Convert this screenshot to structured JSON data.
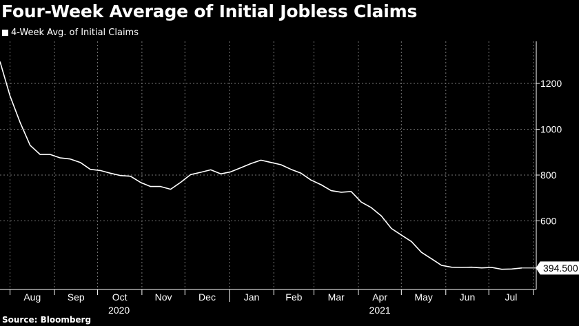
{
  "title": "Four-Week Average of Initial Jobless Claims",
  "legend": {
    "label": "4-Week Avg. of Initial Claims",
    "color": "#ffffff"
  },
  "source": "Source: Bloomberg",
  "chart_data": {
    "type": "line",
    "title": "Four-Week Average of Initial Jobless Claims",
    "xlabel": "",
    "ylabel": "",
    "ylim": [
      360,
      1340
    ],
    "y_ticks": [
      600,
      800,
      1000,
      1200
    ],
    "x_month_labels": [
      "Aug",
      "Sep",
      "Oct",
      "Nov",
      "Dec",
      "Jan",
      "Feb",
      "Mar",
      "Apr",
      "May",
      "Jun",
      "Jul"
    ],
    "x_year_labels": [
      "2020",
      "2021"
    ],
    "grid": true,
    "legend_position": "top-left",
    "last_value_label": "394.500",
    "series": [
      {
        "name": "4-Week Avg. of Initial Claims",
        "color": "#ffffff",
        "x": [
          "2020-07-25",
          "2020-08-01",
          "2020-08-08",
          "2020-08-15",
          "2020-08-22",
          "2020-08-29",
          "2020-09-05",
          "2020-09-12",
          "2020-09-19",
          "2020-09-26",
          "2020-10-03",
          "2020-10-10",
          "2020-10-17",
          "2020-10-24",
          "2020-10-31",
          "2020-11-07",
          "2020-11-14",
          "2020-11-21",
          "2020-11-28",
          "2020-12-05",
          "2020-12-12",
          "2020-12-19",
          "2020-12-26",
          "2021-01-02",
          "2021-01-09",
          "2021-01-16",
          "2021-01-23",
          "2021-01-30",
          "2021-02-06",
          "2021-02-13",
          "2021-02-20",
          "2021-02-27",
          "2021-03-06",
          "2021-03-13",
          "2021-03-20",
          "2021-03-27",
          "2021-04-03",
          "2021-04-10",
          "2021-04-17",
          "2021-04-24",
          "2021-05-01",
          "2021-05-08",
          "2021-05-15",
          "2021-05-22",
          "2021-05-29",
          "2021-06-05",
          "2021-06-12",
          "2021-06-19",
          "2021-06-26",
          "2021-07-03",
          "2021-07-10",
          "2021-07-17",
          "2021-07-24"
        ],
        "values": [
          1295,
          1145,
          1030,
          930,
          890,
          890,
          875,
          870,
          855,
          825,
          820,
          808,
          798,
          795,
          768,
          750,
          750,
          738,
          768,
          802,
          812,
          823,
          805,
          814,
          832,
          850,
          865,
          855,
          845,
          825,
          808,
          778,
          758,
          732,
          725,
          728,
          682,
          658,
          622,
          567,
          538,
          510,
          463,
          435,
          406,
          398,
          397,
          398,
          395,
          397,
          389,
          390,
          394.5
        ]
      }
    ]
  }
}
